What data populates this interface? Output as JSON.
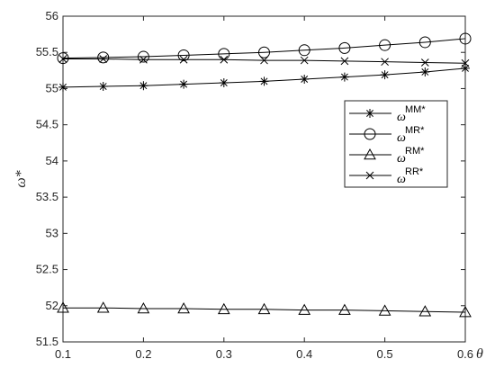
{
  "chart_data": {
    "type": "line",
    "x": [
      0.1,
      0.15,
      0.2,
      0.25,
      0.3,
      0.35,
      0.4,
      0.45,
      0.5,
      0.55,
      0.6
    ],
    "xlim": [
      0.1,
      0.6
    ],
    "ylim": [
      51.5,
      56
    ],
    "xticks": [
      "0.1",
      "0.2",
      "0.3",
      "0.4",
      "0.5",
      "0.6"
    ],
    "yticks": [
      "51.5",
      "52",
      "52.5",
      "53",
      "53.5",
      "54",
      "54.5",
      "55",
      "55.5",
      "56"
    ],
    "xlabel": "θ",
    "ylabel": "ω*",
    "grid": false,
    "legend_position": "right-middle",
    "series": [
      {
        "name": "ω^{MM*}",
        "label_base": "ω",
        "label_sup": "MM*",
        "marker": "asterisk",
        "values": [
          55.02,
          55.03,
          55.04,
          55.06,
          55.08,
          55.1,
          55.13,
          55.16,
          55.19,
          55.23,
          55.28
        ]
      },
      {
        "name": "ω^{MR*}",
        "label_base": "ω",
        "label_sup": "MR*",
        "marker": "circle",
        "values": [
          55.42,
          55.43,
          55.44,
          55.46,
          55.48,
          55.5,
          55.53,
          55.56,
          55.6,
          55.64,
          55.69
        ]
      },
      {
        "name": "ω^{RM*}",
        "label_base": "ω",
        "label_sup": "RM*",
        "marker": "triangle",
        "values": [
          51.97,
          51.97,
          51.96,
          51.96,
          51.95,
          51.95,
          51.94,
          51.94,
          51.93,
          51.92,
          51.91
        ]
      },
      {
        "name": "ω^{RR*}",
        "label_base": "ω",
        "label_sup": "RR*",
        "marker": "x",
        "values": [
          55.41,
          55.41,
          55.4,
          55.4,
          55.4,
          55.39,
          55.39,
          55.38,
          55.37,
          55.36,
          55.35
        ]
      }
    ]
  }
}
